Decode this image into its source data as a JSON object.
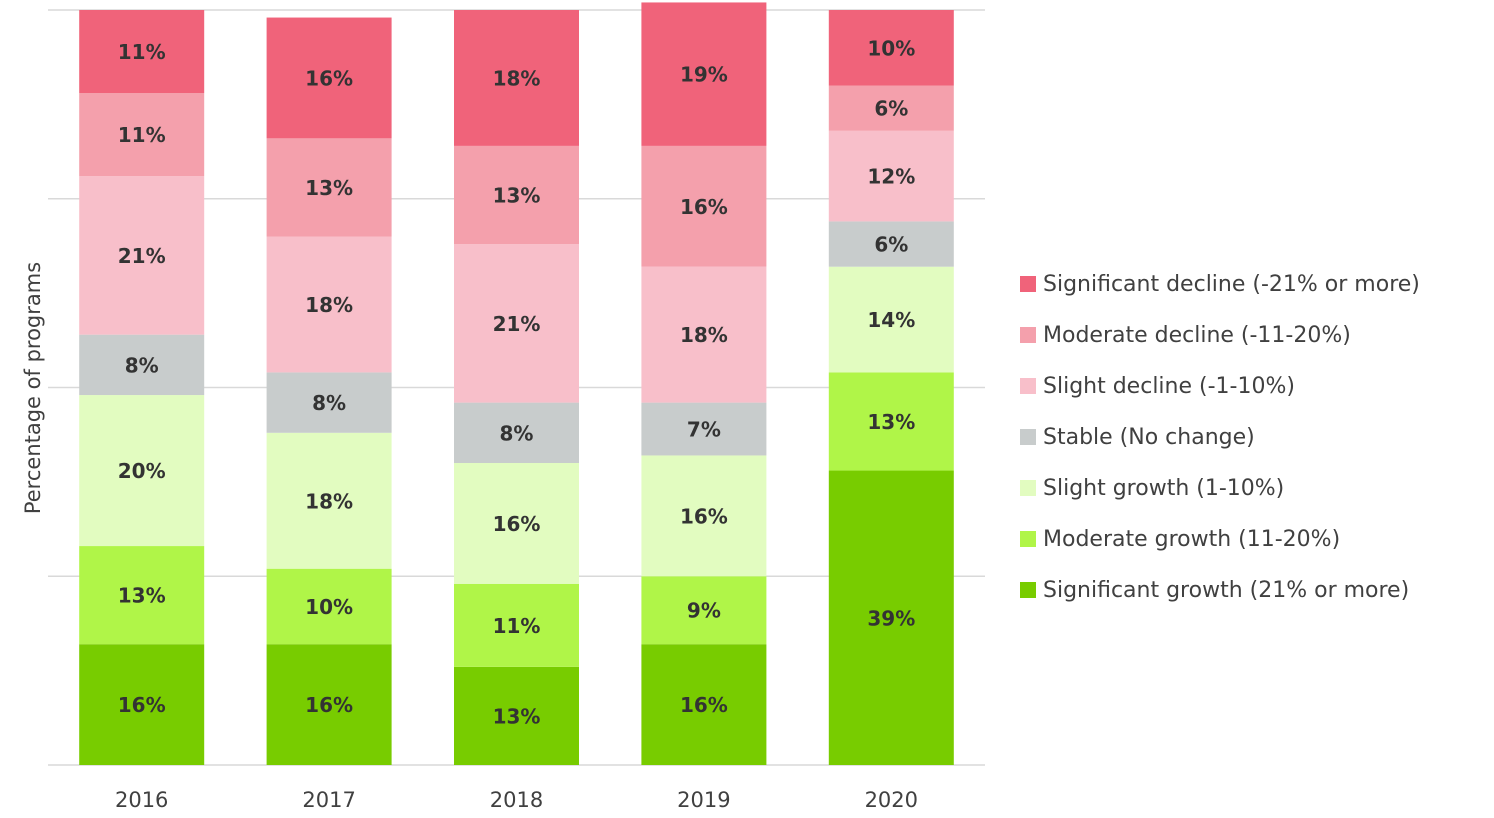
{
  "chart_data": {
    "type": "stacked_bar",
    "y_axis_label": "Percentage of programs",
    "categories": [
      "2016",
      "2017",
      "2018",
      "2019",
      "2020"
    ],
    "series": [
      {
        "name": "Significant growth (21% or more)",
        "color": "#78cc00",
        "values": [
          16,
          16,
          13,
          16,
          39
        ],
        "value_labels": [
          "16%",
          "16%",
          "13%",
          "16%",
          "39%"
        ]
      },
      {
        "name": "Moderate growth (11-20%)",
        "color": "#b0f548",
        "values": [
          13,
          10,
          11,
          9,
          13
        ],
        "value_labels": [
          "13%",
          "10%",
          "11%",
          "9%",
          "13%"
        ]
      },
      {
        "name": "Slight growth (1-10%)",
        "color": "#e2fcc0",
        "values": [
          20,
          18,
          16,
          16,
          14
        ],
        "value_labels": [
          "20%",
          "18%",
          "16%",
          "16%",
          "14%"
        ]
      },
      {
        "name": "Stable (No change)",
        "color": "#c8cccc",
        "values": [
          8,
          8,
          8,
          7,
          6
        ],
        "value_labels": [
          "8%",
          "8%",
          "8%",
          "7%",
          "6%"
        ]
      },
      {
        "name": "Slight decline (-1-10%)",
        "color": "#f8bfca",
        "values": [
          21,
          18,
          21,
          18,
          12
        ],
        "value_labels": [
          "21%",
          "18%",
          "21%",
          "18%",
          "12%"
        ]
      },
      {
        "name": "Moderate decline (-11-20%)",
        "color": "#f4a0ac",
        "values": [
          11,
          13,
          13,
          16,
          6
        ],
        "value_labels": [
          "11%",
          "13%",
          "13%",
          "16%",
          "6%"
        ]
      },
      {
        "name": "Significant decline (-21% or more)",
        "color": "#f0637a",
        "values": [
          11,
          16,
          18,
          19,
          10
        ],
        "value_labels": [
          "11%",
          "16%",
          "18%",
          "19%",
          "10%"
        ]
      }
    ],
    "ylim": [
      0,
      100
    ],
    "yticks": [
      0,
      25,
      50,
      75,
      100
    ],
    "grid": true,
    "legend": "right"
  }
}
